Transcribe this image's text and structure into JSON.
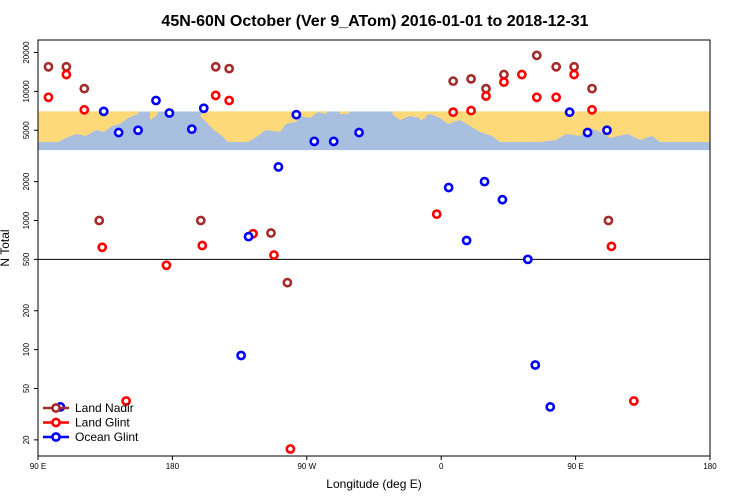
{
  "chart_data": {
    "type": "scatter",
    "title": "45N-60N October (Ver 9_ATom)   2016-01-01 to 2018-12-31",
    "xlabel": "Longitude (deg E)",
    "ylabel": "N Total",
    "x_scale": "longitude from 90 E eastward through 180 to 180",
    "y_scale": "log",
    "xlim": [
      90,
      450
    ],
    "ylim": [
      15,
      25000
    ],
    "x_ticks": [
      {
        "value": 90,
        "label": "90 E"
      },
      {
        "value": 180,
        "label": "180"
      },
      {
        "value": 270,
        "label": "90 W"
      },
      {
        "value": 360,
        "label": "0"
      },
      {
        "value": 450,
        "label": "90 E"
      },
      {
        "value": 540,
        "label": "180"
      }
    ],
    "y_ticks": [
      20,
      50,
      100,
      200,
      500,
      1000,
      2000,
      5000,
      10000,
      20000
    ],
    "reference_line": 500,
    "map_band": {
      "ymin": 3500,
      "ymax": 7000,
      "ocean_color": "#a8bfe0",
      "land_color": "#fdd97a"
    },
    "grid": false,
    "legend_position": "bottom-left",
    "series": [
      {
        "name": "Land Nadir",
        "color": "#a52a2a",
        "points": [
          [
            97,
            15500
          ],
          [
            109,
            15500
          ],
          [
            121,
            10500
          ],
          [
            131,
            1000
          ],
          [
            199,
            1000
          ],
          [
            209,
            15500
          ],
          [
            218,
            15000
          ],
          [
            246,
            800
          ],
          [
            257,
            330
          ],
          [
            368,
            12000
          ],
          [
            380,
            12500
          ],
          [
            390,
            10500
          ],
          [
            402,
            13500
          ],
          [
            424,
            19000
          ],
          [
            437,
            15500
          ],
          [
            449,
            15500
          ],
          [
            461,
            10500
          ],
          [
            472,
            1000
          ]
        ]
      },
      {
        "name": "Land Glint",
        "color": "#ff0000",
        "points": [
          [
            97,
            9000
          ],
          [
            109,
            13500
          ],
          [
            121,
            7200
          ],
          [
            133,
            620
          ],
          [
            149,
            40
          ],
          [
            176,
            450
          ],
          [
            200,
            640
          ],
          [
            209,
            9300
          ],
          [
            218,
            8500
          ],
          [
            234,
            790
          ],
          [
            248,
            540
          ],
          [
            259,
            17
          ],
          [
            357,
            1120
          ],
          [
            368,
            6900
          ],
          [
            380,
            7100
          ],
          [
            390,
            9200
          ],
          [
            402,
            11800
          ],
          [
            414,
            13500
          ],
          [
            424,
            9000
          ],
          [
            437,
            9000
          ],
          [
            449,
            13500
          ],
          [
            461,
            7200
          ],
          [
            474,
            630
          ],
          [
            489,
            40
          ]
        ]
      },
      {
        "name": "Ocean Glint",
        "color": "#0000ff",
        "points": [
          [
            105,
            36
          ],
          [
            134,
            7000
          ],
          [
            144,
            4800
          ],
          [
            157,
            5000
          ],
          [
            169,
            8500
          ],
          [
            178,
            6800
          ],
          [
            193,
            5100
          ],
          [
            201,
            7400
          ],
          [
            226,
            90
          ],
          [
            231,
            750
          ],
          [
            251,
            2600
          ],
          [
            263,
            6600
          ],
          [
            275,
            4100
          ],
          [
            288,
            4100
          ],
          [
            305,
            4800
          ],
          [
            365,
            1800
          ],
          [
            377,
            700
          ],
          [
            389,
            2000
          ],
          [
            401,
            1450
          ],
          [
            418,
            500
          ],
          [
            423,
            76
          ],
          [
            433,
            36
          ],
          [
            446,
            6900
          ],
          [
            458,
            4800
          ],
          [
            471,
            5000
          ]
        ]
      }
    ]
  }
}
